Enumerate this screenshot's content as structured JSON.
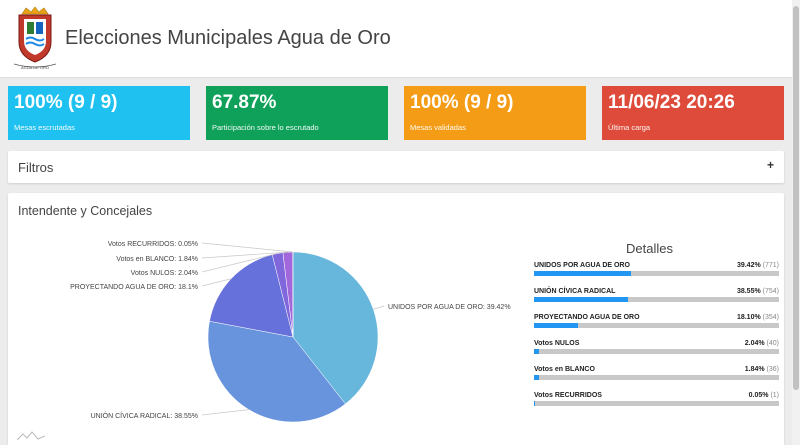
{
  "header": {
    "title": "Elecciones Municipales Agua de Oro",
    "logo_text": "AGUA DE ORO"
  },
  "stats": [
    {
      "value": "100% (9 / 9)",
      "label": "Mesas escrutadas",
      "color": "#1ec1ef"
    },
    {
      "value": "67.87%",
      "label": "Participación sobre lo escrutado",
      "color": "#0fa15a"
    },
    {
      "value": "100% (9 / 9)",
      "label": "Mesas validadas",
      "color": "#f49c15"
    },
    {
      "value": "11/06/23 20:26",
      "label": "Última carga",
      "color": "#de4b3a"
    }
  ],
  "filters": {
    "title": "Filtros",
    "toggle": "+"
  },
  "results": {
    "title": "Intendente y Concejales",
    "detalles_title": "Detalles",
    "items": [
      {
        "name": "UNIDOS POR AGUA DE ORO",
        "pct": "39.42%",
        "count": "(771)",
        "fraction": 0.3942
      },
      {
        "name": "UNIÓN CÍVICA RADICAL",
        "pct": "38.55%",
        "count": "(754)",
        "fraction": 0.3855
      },
      {
        "name": "PROYECTANDO AGUA DE ORO",
        "pct": "18.10%",
        "count": "(354)",
        "fraction": 0.181
      },
      {
        "name": "Votos NULOS",
        "pct": "2.04%",
        "count": "(40)",
        "fraction": 0.0204
      },
      {
        "name": "Votos en BLANCO",
        "pct": "1.84%",
        "count": "(36)",
        "fraction": 0.0184
      },
      {
        "name": "Votos RECURRIDOS",
        "pct": "0.05%",
        "count": "(1)",
        "fraction": 0.0005
      }
    ]
  },
  "chart_data": {
    "type": "pie",
    "categories": [
      "UNIDOS POR AGUA DE ORO",
      "UNIÓN CÍVICA RADICAL",
      "PROYECTANDO AGUA DE ORO",
      "Votos NULOS",
      "Votos en BLANCO",
      "Votos RECURRIDOS"
    ],
    "values": [
      39.42,
      38.55,
      18.1,
      2.04,
      1.84,
      0.05
    ],
    "labels": [
      "UNIDOS POR AGUA DE ORO: 39.42%",
      "UNIÓN CÍVICA RADICAL: 38.55%",
      "PROYECTANDO AGUA DE ORO: 18.1%",
      "Votos NULOS: 2.04%",
      "Votos en BLANCO: 1.84%",
      "Votos RECURRIDOS: 0.05%"
    ],
    "colors": [
      "#67b7dc",
      "#6794dc",
      "#6771dc",
      "#8067dc",
      "#a367dc",
      "#c767dc"
    ]
  }
}
